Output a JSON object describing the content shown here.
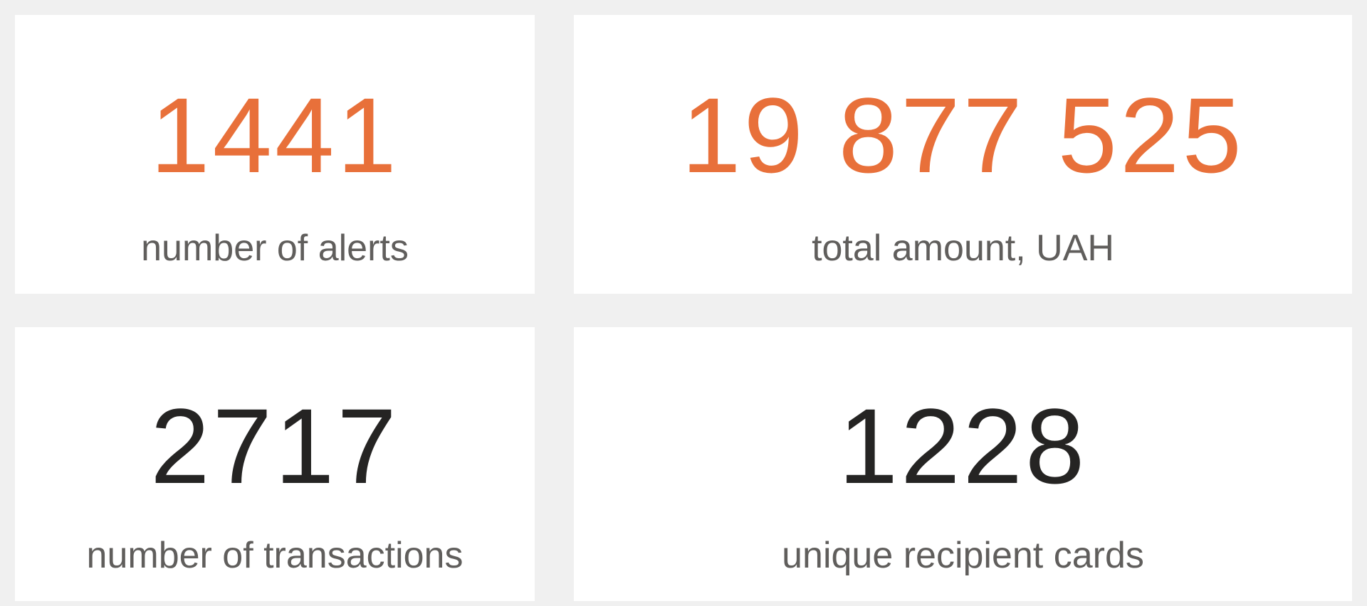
{
  "cards": [
    {
      "value": "1441",
      "label": "number of alerts",
      "color": "#e8703a"
    },
    {
      "value": "19 877 525",
      "label": "total amount, UAH",
      "color": "#e8703a"
    },
    {
      "value": "2717",
      "label": "number of transactions",
      "color": "#252423"
    },
    {
      "value": "1228",
      "label": "unique recipient cards",
      "color": "#252423"
    }
  ]
}
